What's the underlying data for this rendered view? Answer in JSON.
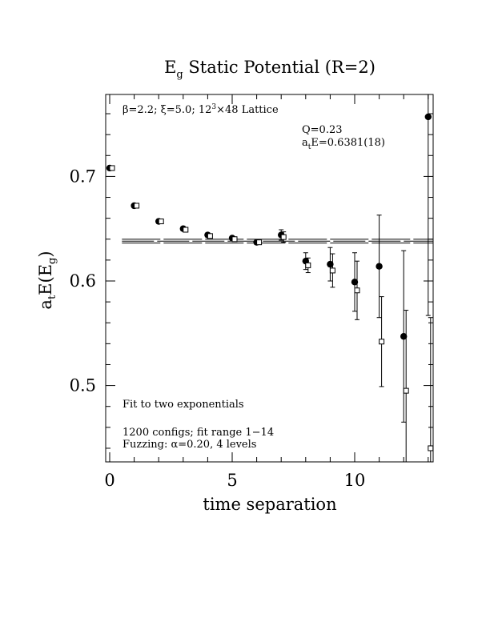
{
  "chart_data": {
    "type": "scatter",
    "title_main": "E",
    "title_sub": "g",
    "title_rest": " Static Potential (R=2)",
    "xlabel": "time separation",
    "ylabel_main": "a",
    "ylabel_sub_t": "t",
    "ylabel_mid": "E(E",
    "ylabel_sub_g": "g",
    "ylabel_end": ")",
    "xlim": [
      0,
      13
    ],
    "ylim": [
      0.43,
      0.78
    ],
    "x_ticks": [
      0,
      5,
      10
    ],
    "y_ticks": [
      0.5,
      0.6,
      0.7
    ],
    "y_tick_labels": [
      "0.5",
      "0.6",
      "0.7"
    ],
    "x_tick_labels": [
      "0",
      "5",
      "10"
    ],
    "annotations": {
      "lattice_pre": "β=2.2; ξ=5.0; 12",
      "lattice_sup": "3",
      "lattice_post": "×48 Lattice",
      "q": "Q=0.23",
      "ate_pre": "a",
      "ate_sub": "t",
      "ate_post": "E=0.6381(18)",
      "fit_type": "Fit to two exponentials",
      "configs": "1200 configs; fit range 1−14",
      "fuzzing": "Fuzzing: α=0.20, 4 levels"
    },
    "fit": {
      "value": 0.6381,
      "error": 0.0018,
      "x_range": [
        0.5,
        13
      ]
    },
    "series": [
      {
        "marker": "filled-circle",
        "points": [
          {
            "x": 0,
            "y": 0.708,
            "err": 0.002
          },
          {
            "x": 1,
            "y": 0.672,
            "err": 0.002
          },
          {
            "x": 2,
            "y": 0.657,
            "err": 0.002
          },
          {
            "x": 3,
            "y": 0.65,
            "err": 0.002
          },
          {
            "x": 4,
            "y": 0.644,
            "err": 0.002
          },
          {
            "x": 5,
            "y": 0.641,
            "err": 0.002
          },
          {
            "x": 6,
            "y": 0.637,
            "err": 0.002
          },
          {
            "x": 7,
            "y": 0.644,
            "err": 0.005
          },
          {
            "x": 8,
            "y": 0.619,
            "err": 0.008
          },
          {
            "x": 9,
            "y": 0.616,
            "err": 0.016
          },
          {
            "x": 10,
            "y": 0.599,
            "err": 0.028
          },
          {
            "x": 11,
            "y": 0.614,
            "err": 0.049
          },
          {
            "x": 12,
            "y": 0.547,
            "err": 0.082
          },
          {
            "x": 13,
            "y": 0.757,
            "err": 0.19
          }
        ]
      },
      {
        "marker": "open-square",
        "points": [
          {
            "x": 0,
            "y": 0.708,
            "err": 0.002
          },
          {
            "x": 1,
            "y": 0.672,
            "err": 0.002
          },
          {
            "x": 2,
            "y": 0.657,
            "err": 0.002
          },
          {
            "x": 3,
            "y": 0.649,
            "err": 0.002
          },
          {
            "x": 4,
            "y": 0.643,
            "err": 0.002
          },
          {
            "x": 5,
            "y": 0.64,
            "err": 0.002
          },
          {
            "x": 6,
            "y": 0.637,
            "err": 0.002
          },
          {
            "x": 7,
            "y": 0.642,
            "err": 0.005
          },
          {
            "x": 8,
            "y": 0.615,
            "err": 0.007
          },
          {
            "x": 9,
            "y": 0.61,
            "err": 0.016
          },
          {
            "x": 10,
            "y": 0.591,
            "err": 0.028
          },
          {
            "x": 11,
            "y": 0.542,
            "err": 0.043
          },
          {
            "x": 12,
            "y": 0.495,
            "err": 0.077
          },
          {
            "x": 13,
            "y": 0.44,
            "err": 0.125
          }
        ]
      }
    ]
  }
}
